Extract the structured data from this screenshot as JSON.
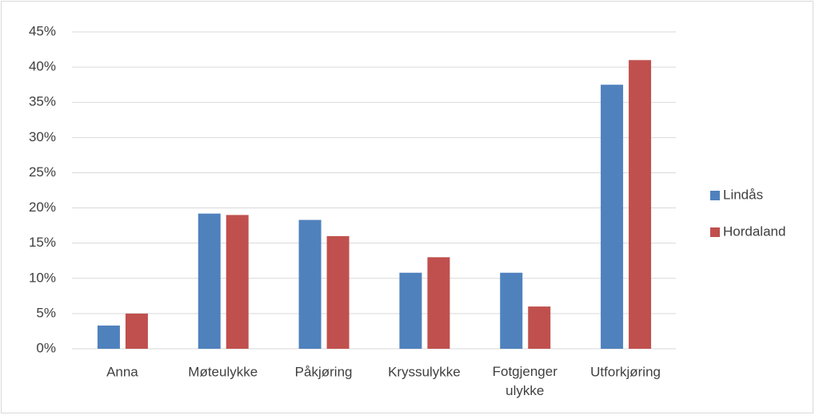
{
  "chart_data": {
    "type": "bar",
    "categories": [
      "Anna",
      "Møteulykke",
      "Påkjøring",
      "Kryssulykke",
      "Fotgjenger ulykke",
      "Utforkjøring"
    ],
    "series": [
      {
        "name": "Lindås",
        "color": "#4f81bd",
        "values": [
          3.3,
          19.2,
          18.3,
          10.8,
          10.8,
          37.5
        ]
      },
      {
        "name": "Hordaland",
        "color": "#c0504d",
        "values": [
          5,
          19,
          16,
          13,
          6,
          41
        ]
      }
    ],
    "ylim": [
      0,
      45
    ],
    "yticks": [
      {
        "value": 0,
        "label": "0%"
      },
      {
        "value": 5,
        "label": "5%"
      },
      {
        "value": 10,
        "label": "10%"
      },
      {
        "value": 15,
        "label": "15%"
      },
      {
        "value": 20,
        "label": "20%"
      },
      {
        "value": 25,
        "label": "25%"
      },
      {
        "value": 30,
        "label": "30%"
      },
      {
        "value": 35,
        "label": "35%"
      },
      {
        "value": 40,
        "label": "40%"
      },
      {
        "value": 45,
        "label": "45%"
      }
    ],
    "grid": true,
    "legend": "right"
  }
}
